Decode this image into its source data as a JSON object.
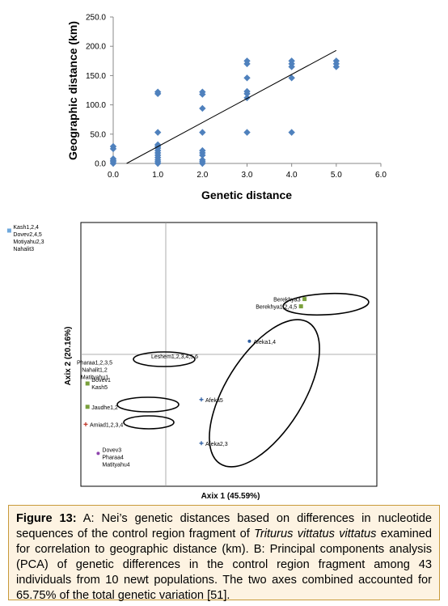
{
  "chart_data": [
    {
      "type": "scatter",
      "panel": "A",
      "xlabel": "Genetic distance",
      "ylabel": "Geographic distance (km)",
      "xlim": [
        0,
        6
      ],
      "ylim": [
        0,
        250
      ],
      "xticks": [
        "0.0",
        "1.0",
        "2.0",
        "3.0",
        "4.0",
        "5.0",
        "6.0"
      ],
      "yticks": [
        "0.0",
        "50.0",
        "100.0",
        "150.0",
        "200.0",
        "250.0"
      ],
      "point_color": "#4f81bd",
      "trendline_color": "#000000",
      "grid": false,
      "points": [
        {
          "x": 0,
          "y": 0
        },
        {
          "x": 0,
          "y": 3
        },
        {
          "x": 0,
          "y": 5
        },
        {
          "x": 0,
          "y": 8
        },
        {
          "x": 0,
          "y": 25
        },
        {
          "x": 0,
          "y": 29
        },
        {
          "x": 1,
          "y": 0
        },
        {
          "x": 1,
          "y": 3
        },
        {
          "x": 1,
          "y": 6
        },
        {
          "x": 1,
          "y": 10
        },
        {
          "x": 1,
          "y": 14
        },
        {
          "x": 1,
          "y": 18
        },
        {
          "x": 1,
          "y": 22
        },
        {
          "x": 1,
          "y": 26
        },
        {
          "x": 1,
          "y": 29
        },
        {
          "x": 1,
          "y": 32
        },
        {
          "x": 1,
          "y": 53
        },
        {
          "x": 1,
          "y": 119
        },
        {
          "x": 1,
          "y": 122
        },
        {
          "x": 2,
          "y": 0
        },
        {
          "x": 2,
          "y": 3
        },
        {
          "x": 2,
          "y": 6
        },
        {
          "x": 2,
          "y": 14
        },
        {
          "x": 2,
          "y": 18
        },
        {
          "x": 2,
          "y": 22
        },
        {
          "x": 2,
          "y": 53
        },
        {
          "x": 2,
          "y": 94
        },
        {
          "x": 2,
          "y": 118
        },
        {
          "x": 2,
          "y": 122
        },
        {
          "x": 3,
          "y": 53
        },
        {
          "x": 3,
          "y": 112
        },
        {
          "x": 3,
          "y": 119
        },
        {
          "x": 3,
          "y": 123
        },
        {
          "x": 3,
          "y": 146
        },
        {
          "x": 3,
          "y": 170
        },
        {
          "x": 3,
          "y": 175
        },
        {
          "x": 4,
          "y": 53
        },
        {
          "x": 4,
          "y": 146
        },
        {
          "x": 4,
          "y": 165
        },
        {
          "x": 4,
          "y": 170
        },
        {
          "x": 4,
          "y": 175
        },
        {
          "x": 5,
          "y": 165
        },
        {
          "x": 5,
          "y": 170
        },
        {
          "x": 5,
          "y": 175
        }
      ],
      "trendline": [
        {
          "x": 0.3,
          "y": 0
        },
        {
          "x": 5.0,
          "y": 193
        }
      ]
    },
    {
      "type": "scatter",
      "panel": "B",
      "xlabel": "Axix 1 (45.59%)",
      "ylabel": "Axix 2 (20.16%)",
      "groups": [
        {
          "labels": [
            "Kash1,2,4",
            "Dovev2,4,5",
            "Motiyahu2,3",
            "Nahalit3"
          ],
          "x": -0.88,
          "y": 0.85,
          "marker": "square",
          "color": "#6fa8dc"
        },
        {
          "labels": [
            "Berekhya3"
          ],
          "x": 0.78,
          "y": 0.38,
          "marker": "square",
          "color": "#7aa03c"
        },
        {
          "labels": [
            "Berekhya1,2,4,5"
          ],
          "x": 0.76,
          "y": 0.33,
          "marker": "square",
          "color": "#7aa03c"
        },
        {
          "labels": [
            "Afeka1,4"
          ],
          "x": 0.47,
          "y": 0.09,
          "marker": "dot",
          "color": "#2e5fa3"
        },
        {
          "labels": [
            "Leshem1,2,3,4,5,6"
          ],
          "x": 0.05,
          "y": -0.01,
          "marker": "none",
          "color": "#000000"
        },
        {
          "labels": [
            "Pharaa1,2,3,5",
            "Nahalit1,2",
            "Matityahu1"
          ],
          "x": -0.4,
          "y": -0.08,
          "marker": "none",
          "color": "#000000"
        },
        {
          "labels": [
            "Dovev1",
            "Kash5"
          ],
          "x": -0.44,
          "y": -0.2,
          "marker": "square",
          "color": "#7aa03c"
        },
        {
          "labels": [
            "Afeka5"
          ],
          "x": 0.2,
          "y": -0.31,
          "marker": "cross",
          "color": "#2e5fa3"
        },
        {
          "labels": [
            "Jaudhe1,2"
          ],
          "x": -0.44,
          "y": -0.36,
          "marker": "square",
          "color": "#7aa03c"
        },
        {
          "labels": [
            "Amiad1,2,3,4"
          ],
          "x": -0.45,
          "y": -0.48,
          "marker": "cross",
          "color": "#c0392b"
        },
        {
          "labels": [
            "Afeka2,3"
          ],
          "x": 0.2,
          "y": -0.61,
          "marker": "cross",
          "color": "#2e5fa3"
        },
        {
          "labels": [
            "Dovev3",
            "Pharaa4",
            "Matityahu4"
          ],
          "x": -0.38,
          "y": -0.68,
          "marker": "dot",
          "color": "#8e44ad"
        }
      ],
      "ellipses": [
        "Berekhya",
        "Afeka",
        "Leshem",
        "Jaudhe",
        "Amiad"
      ]
    }
  ],
  "caption": {
    "label": "Figure 13:",
    "part1": " A: Nei’s genetic distances based on differences in nucleotide sequences of the control region fragment of ",
    "italic": "Triturus vittatus vittatus",
    "part2": " examined for correlation to geographic distance (km). B: Principal components analysis (PCA) of genetic differences in the control region fragment among 43 individuals from 10 newt populations. The two axes combined accounted for 65.75% of the total genetic variation [51]."
  }
}
